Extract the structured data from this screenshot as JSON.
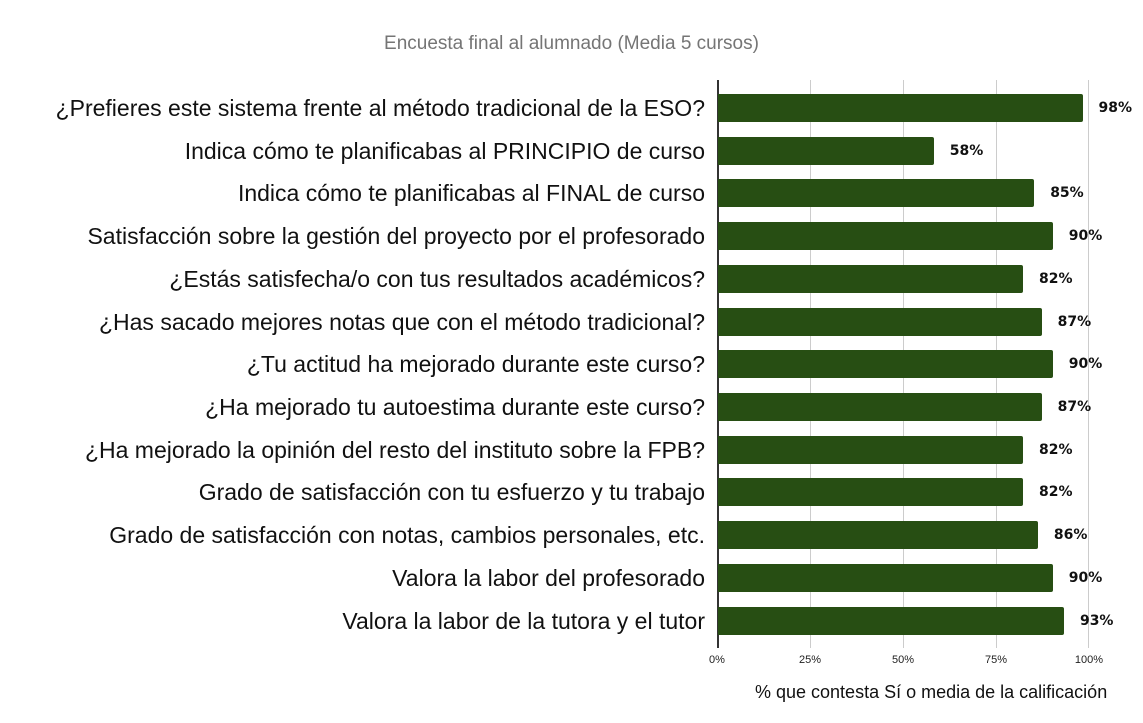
{
  "chart_data": {
    "type": "bar",
    "orientation": "horizontal",
    "title": "Encuesta final al alumnado (Media 5 cursos)",
    "xlabel": "% que contesta Sí o media de la calificación",
    "ylabel": "",
    "xlim": [
      0,
      100
    ],
    "x_ticks": [
      "0%",
      "25%",
      "50%",
      "75%",
      "100%"
    ],
    "grid": true,
    "legend": null,
    "bar_color": "#274e13",
    "categories": [
      "¿Prefieres este sistema frente al método tradicional de la ESO?",
      "Indica cómo te planificabas al PRINCIPIO de curso",
      "Indica cómo te planificabas al FINAL de curso",
      "Satisfacción sobre la gestión del proyecto por el profesorado",
      "¿Estás satisfecha/o con tus resultados académicos?",
      "¿Has sacado mejores notas que con el método tradicional?",
      "¿Tu actitud ha mejorado durante este curso?",
      "¿Ha mejorado tu autoestima durante este curso?",
      "¿Ha mejorado la opinión del resto del instituto sobre la FPB?",
      "Grado de satisfacción con tu esfuerzo y tu trabajo",
      "Grado de satisfacción con notas, cambios personales, etc.",
      "Valora la labor del profesorado",
      "Valora la labor de la tutora y el tutor"
    ],
    "values": [
      98,
      58,
      85,
      90,
      82,
      87,
      90,
      87,
      82,
      82,
      86,
      90,
      93
    ],
    "value_labels": [
      "98%",
      "58%",
      "85%",
      "90%",
      "82%",
      "87%",
      "90%",
      "87%",
      "82%",
      "82%",
      "86%",
      "90%",
      "93%"
    ]
  }
}
